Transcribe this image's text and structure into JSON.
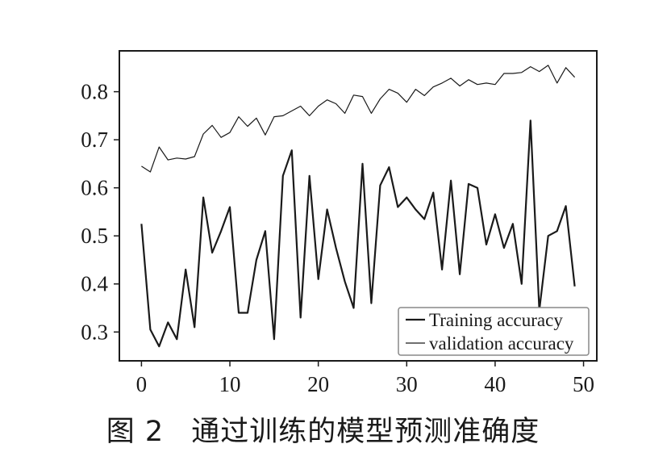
{
  "caption": {
    "figure_label": "图 2",
    "text": "通过训练的模型预测准确度"
  },
  "chart_data": {
    "type": "line",
    "title": "",
    "xlabel": "",
    "ylabel": "",
    "xlim": [
      -2.5,
      51.5
    ],
    "ylim": [
      0.24,
      0.885
    ],
    "x_ticks": [
      0,
      10,
      20,
      30,
      40,
      50
    ],
    "y_ticks": [
      0.3,
      0.4,
      0.5,
      0.6,
      0.7,
      0.8
    ],
    "grid": false,
    "legend_position": "lower-right",
    "x": [
      0,
      1,
      2,
      3,
      4,
      5,
      6,
      7,
      8,
      9,
      10,
      11,
      12,
      13,
      14,
      15,
      16,
      17,
      18,
      19,
      20,
      21,
      22,
      23,
      24,
      25,
      26,
      27,
      28,
      29,
      30,
      31,
      32,
      33,
      34,
      35,
      36,
      37,
      38,
      39,
      40,
      41,
      42,
      43,
      44,
      45,
      46,
      47,
      48,
      49
    ],
    "series": [
      {
        "name": "Training accuracy",
        "color": "#1a1a1a",
        "values": [
          0.525,
          0.305,
          0.27,
          0.32,
          0.285,
          0.43,
          0.31,
          0.58,
          0.465,
          0.51,
          0.56,
          0.34,
          0.34,
          0.45,
          0.51,
          0.285,
          0.625,
          0.678,
          0.33,
          0.625,
          0.41,
          0.555,
          0.475,
          0.405,
          0.35,
          0.65,
          0.36,
          0.605,
          0.643,
          0.56,
          0.58,
          0.555,
          0.535,
          0.59,
          0.43,
          0.615,
          0.42,
          0.608,
          0.6,
          0.482,
          0.545,
          0.475,
          0.525,
          0.4,
          0.74,
          0.345,
          0.5,
          0.51,
          0.562,
          0.395
        ]
      },
      {
        "name": "validation accuracy",
        "color": "#1a1a1a",
        "values": [
          0.645,
          0.633,
          0.685,
          0.658,
          0.662,
          0.66,
          0.665,
          0.712,
          0.73,
          0.705,
          0.715,
          0.748,
          0.728,
          0.745,
          0.71,
          0.748,
          0.75,
          0.76,
          0.77,
          0.75,
          0.77,
          0.783,
          0.775,
          0.755,
          0.793,
          0.79,
          0.755,
          0.785,
          0.805,
          0.797,
          0.778,
          0.805,
          0.792,
          0.81,
          0.818,
          0.828,
          0.812,
          0.825,
          0.815,
          0.818,
          0.815,
          0.838,
          0.838,
          0.84,
          0.852,
          0.842,
          0.855,
          0.818,
          0.85,
          0.83
        ]
      }
    ]
  }
}
